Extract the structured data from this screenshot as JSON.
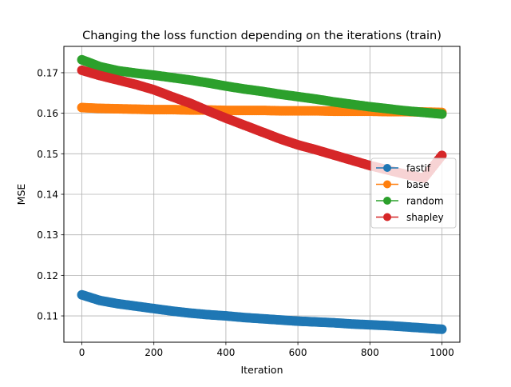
{
  "chart_data": {
    "type": "line",
    "title": "Changing the loss function depending on the iterations (train)",
    "xlabel": "Iteration",
    "ylabel": "MSE",
    "xlim": [
      -50,
      1050
    ],
    "ylim": [
      0.1035,
      0.1765
    ],
    "xticks": [
      0,
      200,
      400,
      600,
      800,
      1000
    ],
    "xtick_labels": [
      "0",
      "200",
      "400",
      "600",
      "800",
      "1000"
    ],
    "yticks": [
      0.11,
      0.12,
      0.13,
      0.14,
      0.15,
      0.16,
      0.17
    ],
    "ytick_labels": [
      "0.11",
      "0.12",
      "0.13",
      "0.14",
      "0.15",
      "0.16",
      "0.17"
    ],
    "grid": true,
    "legend_position": "center-right",
    "x": [
      0,
      50,
      100,
      150,
      200,
      250,
      300,
      350,
      400,
      450,
      500,
      550,
      600,
      650,
      700,
      750,
      800,
      850,
      900,
      950,
      1000
    ],
    "series": [
      {
        "name": "fastif",
        "color": "#1f77b4",
        "values": [
          0.1152,
          0.1138,
          0.113,
          0.1124,
          0.1118,
          0.1112,
          0.1107,
          0.1103,
          0.11,
          0.1096,
          0.1093,
          0.109,
          0.1087,
          0.1085,
          0.1083,
          0.108,
          0.1078,
          0.1076,
          0.1073,
          0.107,
          0.1067
        ]
      },
      {
        "name": "base",
        "color": "#ff7f0e",
        "values": [
          0.1614,
          0.1612,
          0.1611,
          0.161,
          0.1609,
          0.1609,
          0.1608,
          0.1608,
          0.1607,
          0.1607,
          0.1607,
          0.1606,
          0.1606,
          0.1606,
          0.1605,
          0.1605,
          0.1605,
          0.1604,
          0.1604,
          0.1603,
          0.1602
        ]
      },
      {
        "name": "random",
        "color": "#2ca02c",
        "values": [
          0.1732,
          0.1715,
          0.1705,
          0.1699,
          0.1694,
          0.1688,
          0.1682,
          0.1675,
          0.1667,
          0.166,
          0.1654,
          0.1647,
          0.1641,
          0.1635,
          0.1628,
          0.1622,
          0.1616,
          0.1611,
          0.1606,
          0.1602,
          0.1598
        ]
      },
      {
        "name": "shapley",
        "color": "#d62728",
        "values": [
          0.1706,
          0.1693,
          0.1682,
          0.1671,
          0.1658,
          0.1641,
          0.1625,
          0.1606,
          0.1588,
          0.1571,
          0.1554,
          0.1537,
          0.1522,
          0.151,
          0.1497,
          0.1484,
          0.1471,
          0.146,
          0.1449,
          0.144,
          0.1496
        ]
      }
    ]
  }
}
